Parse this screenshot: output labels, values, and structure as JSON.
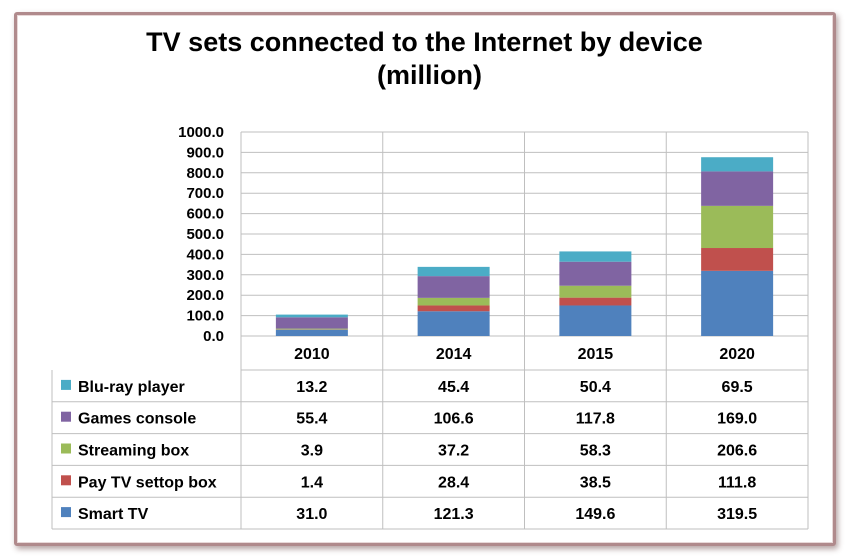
{
  "chart_data": {
    "type": "bar",
    "stacked": true,
    "title_line1": "TV sets connected to the Internet by device",
    "title_line2": "(million)",
    "categories": [
      "2010",
      "2014",
      "2015",
      "2020"
    ],
    "ylim": [
      0,
      1000
    ],
    "yticks": [
      "1000.0",
      "900.0",
      "800.0",
      "700.0",
      "600.0",
      "500.0",
      "400.0",
      "300.0",
      "200.0",
      "100.0",
      "0.0"
    ],
    "grid": true,
    "legend": "data-table-left",
    "series": [
      {
        "name": "Smart TV",
        "color": "#4f81bd",
        "values": [
          31.0,
          121.3,
          149.6,
          319.5
        ],
        "labels": [
          "31.0",
          "121.3",
          "149.6",
          "319.5"
        ]
      },
      {
        "name": "Pay TV settop box",
        "color": "#c0504d",
        "values": [
          1.4,
          28.4,
          38.5,
          111.8
        ],
        "labels": [
          "1.4",
          "28.4",
          "38.5",
          "111.8"
        ]
      },
      {
        "name": "Streaming box",
        "color": "#9bbb59",
        "values": [
          3.9,
          37.2,
          58.3,
          206.6
        ],
        "labels": [
          "3.9",
          "37.2",
          "58.3",
          "206.6"
        ]
      },
      {
        "name": "Games console",
        "color": "#8064a2",
        "values": [
          55.4,
          106.6,
          117.8,
          169.0
        ],
        "labels": [
          "55.4",
          "106.6",
          "117.8",
          "169.0"
        ]
      },
      {
        "name": "Blu-ray player",
        "color": "#4bacc6",
        "values": [
          13.2,
          45.4,
          50.4,
          69.5
        ],
        "labels": [
          "13.2",
          "45.4",
          "50.4",
          "69.5"
        ]
      }
    ]
  }
}
